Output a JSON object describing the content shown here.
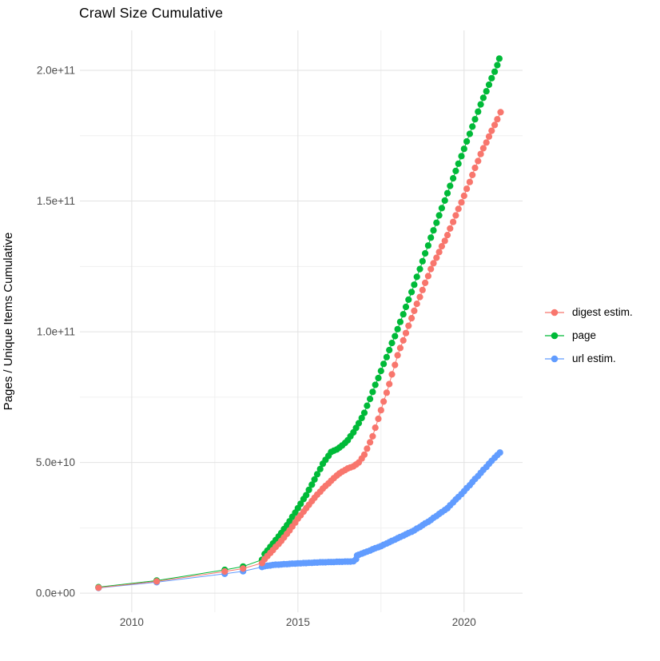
{
  "title": "Crawl Size Cumulative",
  "y_axis_label": "Pages / Unique Items Cumulative",
  "legend": {
    "items": [
      {
        "label": "digest estim.",
        "color": "#F8766D"
      },
      {
        "label": "page",
        "color": "#00BA38"
      },
      {
        "label": "url estim.",
        "color": "#619CFF"
      }
    ]
  },
  "colors": {
    "digest": "#F8766D",
    "page": "#00BA38",
    "url": "#619CFF",
    "grid_major": "#E2E2E2",
    "grid_minor": "#EDEDED",
    "tick_text": "#4D4D4D",
    "title_text": "#000000",
    "background": "#FFFFFF"
  },
  "chart_data": {
    "type": "scatter",
    "title": "Crawl Size Cumulative",
    "xlabel": "",
    "ylabel": "Pages / Unique Items Cumulative",
    "value_unit": "items (values stored in billions, 1e9)",
    "xlim": [
      2008.44,
      2021.76
    ],
    "ylim_billions": [
      -7.3,
      215.3
    ],
    "grid": true,
    "legend_position": "right",
    "x_ticks": [
      {
        "year": 2010,
        "label": "2010"
      },
      {
        "year": 2015,
        "label": "2015"
      },
      {
        "year": 2020,
        "label": "2020"
      }
    ],
    "x_minor_ticks": [
      2012.5,
      2017.5
    ],
    "y_ticks": [
      {
        "billions": 0,
        "label": "0.0e+00"
      },
      {
        "billions": 50,
        "label": "5.0e+10"
      },
      {
        "billions": 100,
        "label": "1.0e+11"
      },
      {
        "billions": 150,
        "label": "1.5e+11"
      },
      {
        "billions": 200,
        "label": "2.0e+11"
      }
    ],
    "y_minor_ticks_billions": [
      25,
      75,
      125,
      175
    ],
    "series": [
      {
        "name": "digest estim.",
        "color": "#F8766D",
        "points": [
          [
            2009.0,
            2.1
          ],
          [
            2010.75,
            4.5
          ],
          [
            2012.8,
            8.3
          ],
          [
            2013.35,
            9.4
          ],
          [
            2013.92,
            11.5
          ],
          [
            2014.0,
            13.0
          ],
          [
            2014.08,
            14.2
          ],
          [
            2014.17,
            15.4
          ],
          [
            2014.25,
            16.5
          ],
          [
            2014.33,
            17.7
          ],
          [
            2014.42,
            18.8
          ],
          [
            2014.5,
            20.0
          ],
          [
            2014.58,
            21.3
          ],
          [
            2014.67,
            22.7
          ],
          [
            2014.75,
            24.0
          ],
          [
            2014.83,
            25.5
          ],
          [
            2014.92,
            27.0
          ],
          [
            2015.0,
            28.5
          ],
          [
            2015.08,
            29.8
          ],
          [
            2015.17,
            31.2
          ],
          [
            2015.25,
            32.5
          ],
          [
            2015.33,
            33.8
          ],
          [
            2015.42,
            35.2
          ],
          [
            2015.5,
            36.5
          ],
          [
            2015.58,
            37.7
          ],
          [
            2015.67,
            38.8
          ],
          [
            2015.75,
            40.0
          ],
          [
            2015.83,
            41.0
          ],
          [
            2015.92,
            42.0
          ],
          [
            2016.0,
            43.0
          ],
          [
            2016.08,
            44.0
          ],
          [
            2016.17,
            45.0
          ],
          [
            2016.25,
            45.8
          ],
          [
            2016.33,
            46.5
          ],
          [
            2016.42,
            47.1
          ],
          [
            2016.5,
            47.7
          ],
          [
            2016.58,
            48.1
          ],
          [
            2016.67,
            48.5
          ],
          [
            2016.75,
            49.2
          ],
          [
            2016.83,
            50.0
          ],
          [
            2016.92,
            51.5
          ],
          [
            2017.0,
            53.0
          ],
          [
            2017.08,
            55.3
          ],
          [
            2017.17,
            57.7
          ],
          [
            2017.25,
            60.0
          ],
          [
            2017.33,
            63.3
          ],
          [
            2017.42,
            66.7
          ],
          [
            2017.5,
            70.0
          ],
          [
            2017.58,
            73.3
          ],
          [
            2017.67,
            76.7
          ],
          [
            2017.75,
            80.0
          ],
          [
            2017.83,
            83.7
          ],
          [
            2017.92,
            87.3
          ],
          [
            2018.0,
            91.0
          ],
          [
            2018.08,
            93.8
          ],
          [
            2018.17,
            96.7
          ],
          [
            2018.25,
            99.5
          ],
          [
            2018.33,
            102.3
          ],
          [
            2018.42,
            105.2
          ],
          [
            2018.5,
            108.0
          ],
          [
            2018.58,
            110.7
          ],
          [
            2018.67,
            113.3
          ],
          [
            2018.75,
            116.0
          ],
          [
            2018.83,
            118.7
          ],
          [
            2018.92,
            121.3
          ],
          [
            2019.0,
            124.0
          ],
          [
            2019.08,
            126.2
          ],
          [
            2019.17,
            128.3
          ],
          [
            2019.25,
            130.5
          ],
          [
            2019.33,
            132.7
          ],
          [
            2019.42,
            134.8
          ],
          [
            2019.5,
            137.0
          ],
          [
            2019.58,
            139.5
          ],
          [
            2019.67,
            142.0
          ],
          [
            2019.75,
            144.5
          ],
          [
            2019.83,
            147.0
          ],
          [
            2019.92,
            149.5
          ],
          [
            2020.0,
            152.0
          ],
          [
            2020.08,
            154.7
          ],
          [
            2020.17,
            157.3
          ],
          [
            2020.25,
            160.0
          ],
          [
            2020.33,
            162.7
          ],
          [
            2020.42,
            165.3
          ],
          [
            2020.5,
            168.0
          ],
          [
            2020.58,
            170.2
          ],
          [
            2020.67,
            172.4
          ],
          [
            2020.75,
            174.7
          ],
          [
            2020.83,
            176.9
          ],
          [
            2020.92,
            179.1
          ],
          [
            2021.0,
            181.3
          ],
          [
            2021.1,
            184.0
          ]
        ]
      },
      {
        "name": "page",
        "color": "#00BA38",
        "points": [
          [
            2009.0,
            2.3
          ],
          [
            2010.75,
            4.8
          ],
          [
            2012.8,
            8.9
          ],
          [
            2013.35,
            10.2
          ],
          [
            2013.92,
            12.8
          ],
          [
            2014.0,
            15.0
          ],
          [
            2014.08,
            16.3
          ],
          [
            2014.17,
            17.7
          ],
          [
            2014.25,
            19.0
          ],
          [
            2014.33,
            20.3
          ],
          [
            2014.42,
            21.7
          ],
          [
            2014.5,
            23.0
          ],
          [
            2014.58,
            24.5
          ],
          [
            2014.67,
            26.0
          ],
          [
            2014.75,
            27.5
          ],
          [
            2014.83,
            29.2
          ],
          [
            2014.92,
            30.8
          ],
          [
            2015.0,
            32.5
          ],
          [
            2015.08,
            34.2
          ],
          [
            2015.17,
            36.0
          ],
          [
            2015.25,
            37.5
          ],
          [
            2015.33,
            39.5
          ],
          [
            2015.42,
            41.5
          ],
          [
            2015.5,
            43.5
          ],
          [
            2015.58,
            45.5
          ],
          [
            2015.67,
            47.5
          ],
          [
            2015.75,
            49.5
          ],
          [
            2015.83,
            51.0
          ],
          [
            2015.92,
            52.5
          ],
          [
            2016.0,
            54.0
          ],
          [
            2016.08,
            54.5
          ],
          [
            2016.17,
            55.0
          ],
          [
            2016.25,
            55.7
          ],
          [
            2016.33,
            56.5
          ],
          [
            2016.42,
            57.5
          ],
          [
            2016.5,
            58.5
          ],
          [
            2016.58,
            60.0
          ],
          [
            2016.67,
            61.5
          ],
          [
            2016.75,
            63.2
          ],
          [
            2016.83,
            65.0
          ],
          [
            2016.92,
            67.0
          ],
          [
            2017.0,
            69.0
          ],
          [
            2017.08,
            71.7
          ],
          [
            2017.17,
            74.3
          ],
          [
            2017.25,
            77.0
          ],
          [
            2017.33,
            79.7
          ],
          [
            2017.42,
            82.3
          ],
          [
            2017.5,
            85.0
          ],
          [
            2017.58,
            87.7
          ],
          [
            2017.67,
            90.3
          ],
          [
            2017.75,
            93.0
          ],
          [
            2017.83,
            95.7
          ],
          [
            2017.92,
            98.3
          ],
          [
            2018.0,
            101.0
          ],
          [
            2018.08,
            103.8
          ],
          [
            2018.17,
            106.7
          ],
          [
            2018.25,
            109.5
          ],
          [
            2018.33,
            112.3
          ],
          [
            2018.42,
            115.2
          ],
          [
            2018.5,
            118.0
          ],
          [
            2018.58,
            121.0
          ],
          [
            2018.67,
            124.0
          ],
          [
            2018.75,
            127.0
          ],
          [
            2018.83,
            130.0
          ],
          [
            2018.92,
            133.0
          ],
          [
            2019.0,
            136.0
          ],
          [
            2019.08,
            138.8
          ],
          [
            2019.17,
            141.7
          ],
          [
            2019.25,
            144.5
          ],
          [
            2019.33,
            147.3
          ],
          [
            2019.42,
            150.2
          ],
          [
            2019.5,
            153.0
          ],
          [
            2019.58,
            155.8
          ],
          [
            2019.67,
            158.7
          ],
          [
            2019.75,
            161.5
          ],
          [
            2019.83,
            164.3
          ],
          [
            2019.92,
            167.2
          ],
          [
            2020.0,
            170.0
          ],
          [
            2020.08,
            172.8
          ],
          [
            2020.17,
            175.7
          ],
          [
            2020.25,
            178.5
          ],
          [
            2020.33,
            181.3
          ],
          [
            2020.42,
            184.2
          ],
          [
            2020.5,
            187.0
          ],
          [
            2020.58,
            189.5
          ],
          [
            2020.67,
            192.0
          ],
          [
            2020.75,
            194.5
          ],
          [
            2020.83,
            197.0
          ],
          [
            2020.92,
            199.5
          ],
          [
            2021.0,
            202.0
          ],
          [
            2021.06,
            204.5
          ]
        ]
      },
      {
        "name": "url estim.",
        "color": "#619CFF",
        "points": [
          [
            2009.0,
            2.0
          ],
          [
            2010.75,
            4.2
          ],
          [
            2012.8,
            7.4
          ],
          [
            2013.35,
            8.4
          ],
          [
            2013.92,
            10.0
          ],
          [
            2014.0,
            10.3
          ],
          [
            2014.08,
            10.5
          ],
          [
            2014.17,
            10.6
          ],
          [
            2014.25,
            10.8
          ],
          [
            2014.33,
            10.9
          ],
          [
            2014.42,
            10.9
          ],
          [
            2014.5,
            11.0
          ],
          [
            2014.58,
            11.1
          ],
          [
            2014.67,
            11.1
          ],
          [
            2014.75,
            11.2
          ],
          [
            2014.83,
            11.3
          ],
          [
            2014.92,
            11.3
          ],
          [
            2015.0,
            11.4
          ],
          [
            2015.08,
            11.4
          ],
          [
            2015.17,
            11.5
          ],
          [
            2015.25,
            11.5
          ],
          [
            2015.33,
            11.6
          ],
          [
            2015.42,
            11.6
          ],
          [
            2015.5,
            11.7
          ],
          [
            2015.58,
            11.7
          ],
          [
            2015.67,
            11.8
          ],
          [
            2015.75,
            11.8
          ],
          [
            2015.83,
            11.8
          ],
          [
            2015.92,
            11.9
          ],
          [
            2016.0,
            11.9
          ],
          [
            2016.08,
            11.9
          ],
          [
            2016.17,
            12.0
          ],
          [
            2016.25,
            12.0
          ],
          [
            2016.33,
            12.0
          ],
          [
            2016.42,
            12.1
          ],
          [
            2016.5,
            12.1
          ],
          [
            2016.58,
            12.1
          ],
          [
            2016.67,
            12.2
          ],
          [
            2016.75,
            13.0
          ],
          [
            2016.78,
            14.4
          ],
          [
            2016.83,
            14.7
          ],
          [
            2016.92,
            15.1
          ],
          [
            2017.0,
            15.5
          ],
          [
            2017.08,
            15.9
          ],
          [
            2017.17,
            16.3
          ],
          [
            2017.25,
            16.8
          ],
          [
            2017.33,
            17.2
          ],
          [
            2017.42,
            17.6
          ],
          [
            2017.5,
            18.0
          ],
          [
            2017.58,
            18.5
          ],
          [
            2017.67,
            19.0
          ],
          [
            2017.75,
            19.5
          ],
          [
            2017.83,
            20.0
          ],
          [
            2017.92,
            20.5
          ],
          [
            2018.0,
            21.0
          ],
          [
            2018.08,
            21.5
          ],
          [
            2018.17,
            22.0
          ],
          [
            2018.25,
            22.5
          ],
          [
            2018.33,
            23.0
          ],
          [
            2018.42,
            23.5
          ],
          [
            2018.5,
            24.0
          ],
          [
            2018.58,
            24.7
          ],
          [
            2018.67,
            25.3
          ],
          [
            2018.75,
            26.0
          ],
          [
            2018.83,
            26.7
          ],
          [
            2018.92,
            27.3
          ],
          [
            2019.0,
            28.0
          ],
          [
            2019.08,
            28.8
          ],
          [
            2019.17,
            29.5
          ],
          [
            2019.25,
            30.3
          ],
          [
            2019.33,
            31.0
          ],
          [
            2019.42,
            31.8
          ],
          [
            2019.5,
            32.5
          ],
          [
            2019.58,
            33.6
          ],
          [
            2019.67,
            34.7
          ],
          [
            2019.75,
            35.8
          ],
          [
            2019.83,
            36.8
          ],
          [
            2019.92,
            37.9
          ],
          [
            2020.0,
            39.0
          ],
          [
            2020.08,
            40.2
          ],
          [
            2020.17,
            41.3
          ],
          [
            2020.25,
            42.5
          ],
          [
            2020.33,
            43.7
          ],
          [
            2020.42,
            44.8
          ],
          [
            2020.5,
            46.0
          ],
          [
            2020.58,
            47.2
          ],
          [
            2020.67,
            48.3
          ],
          [
            2020.75,
            49.5
          ],
          [
            2020.83,
            50.6
          ],
          [
            2020.92,
            51.8
          ],
          [
            2021.0,
            52.8
          ],
          [
            2021.08,
            53.8
          ]
        ]
      }
    ]
  }
}
